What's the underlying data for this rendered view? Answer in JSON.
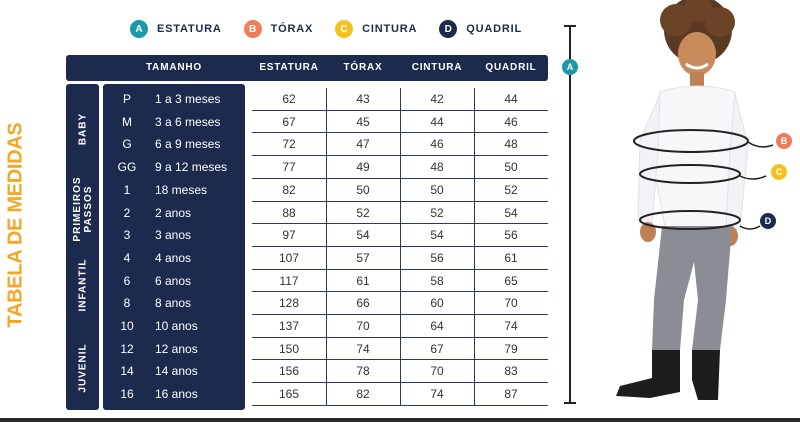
{
  "legend": [
    {
      "letter": "A",
      "label": "ESTATURA",
      "color": "#1a9aa8"
    },
    {
      "letter": "B",
      "label": "TÓRAX",
      "color": "#ef7d5a"
    },
    {
      "letter": "C",
      "label": "CINTURA",
      "color": "#f4c21f"
    },
    {
      "letter": "D",
      "label": "QUADRIL",
      "color": "#1c2b4d"
    }
  ],
  "title": "TABELA DE MEDIDAS",
  "header": {
    "tamanho": "TAMANHO",
    "estatura": "ESTATURA",
    "torax": "TÓRAX",
    "cintura": "CINTURA",
    "quadril": "QUADRIL"
  },
  "groups": [
    {
      "label": "BABY",
      "label2": ""
    },
    {
      "label": "PRIMEIROS",
      "label2": "PASSOS"
    },
    {
      "label": "INFANTIL",
      "label2": ""
    },
    {
      "label": "JUVENIL",
      "label2": ""
    }
  ],
  "rows": [
    {
      "code": "P",
      "age": "1 a 3 meses",
      "estatura": "62",
      "torax": "43",
      "cintura": "42",
      "quadril": "44"
    },
    {
      "code": "M",
      "age": "3 a 6 meses",
      "estatura": "67",
      "torax": "45",
      "cintura": "44",
      "quadril": "46"
    },
    {
      "code": "G",
      "age": "6 a 9 meses",
      "estatura": "72",
      "torax": "47",
      "cintura": "46",
      "quadril": "48"
    },
    {
      "code": "GG",
      "age": "9 a 12 meses",
      "estatura": "77",
      "torax": "49",
      "cintura": "48",
      "quadril": "50"
    },
    {
      "code": "1",
      "age": "18 meses",
      "estatura": "82",
      "torax": "50",
      "cintura": "50",
      "quadril": "52"
    },
    {
      "code": "2",
      "age": "2 anos",
      "estatura": "88",
      "torax": "52",
      "cintura": "52",
      "quadril": "54"
    },
    {
      "code": "3",
      "age": "3 anos",
      "estatura": "97",
      "torax": "54",
      "cintura": "54",
      "quadril": "56"
    },
    {
      "code": "4",
      "age": "4 anos",
      "estatura": "107",
      "torax": "57",
      "cintura": "56",
      "quadril": "61"
    },
    {
      "code": "6",
      "age": "6 anos",
      "estatura": "117",
      "torax": "61",
      "cintura": "58",
      "quadril": "65"
    },
    {
      "code": "8",
      "age": "8 anos",
      "estatura": "128",
      "torax": "66",
      "cintura": "60",
      "quadril": "70"
    },
    {
      "code": "10",
      "age": "10 anos",
      "estatura": "137",
      "torax": "70",
      "cintura": "64",
      "quadril": "74"
    },
    {
      "code": "12",
      "age": "12 anos",
      "estatura": "150",
      "torax": "74",
      "cintura": "67",
      "quadril": "79"
    },
    {
      "code": "14",
      "age": "14 anos",
      "estatura": "156",
      "torax": "78",
      "cintura": "70",
      "quadril": "83"
    },
    {
      "code": "16",
      "age": "16 anos",
      "estatura": "165",
      "torax": "82",
      "cintura": "74",
      "quadril": "87"
    }
  ],
  "markers": {
    "a": "A",
    "b": "B",
    "c": "C",
    "d": "D"
  }
}
